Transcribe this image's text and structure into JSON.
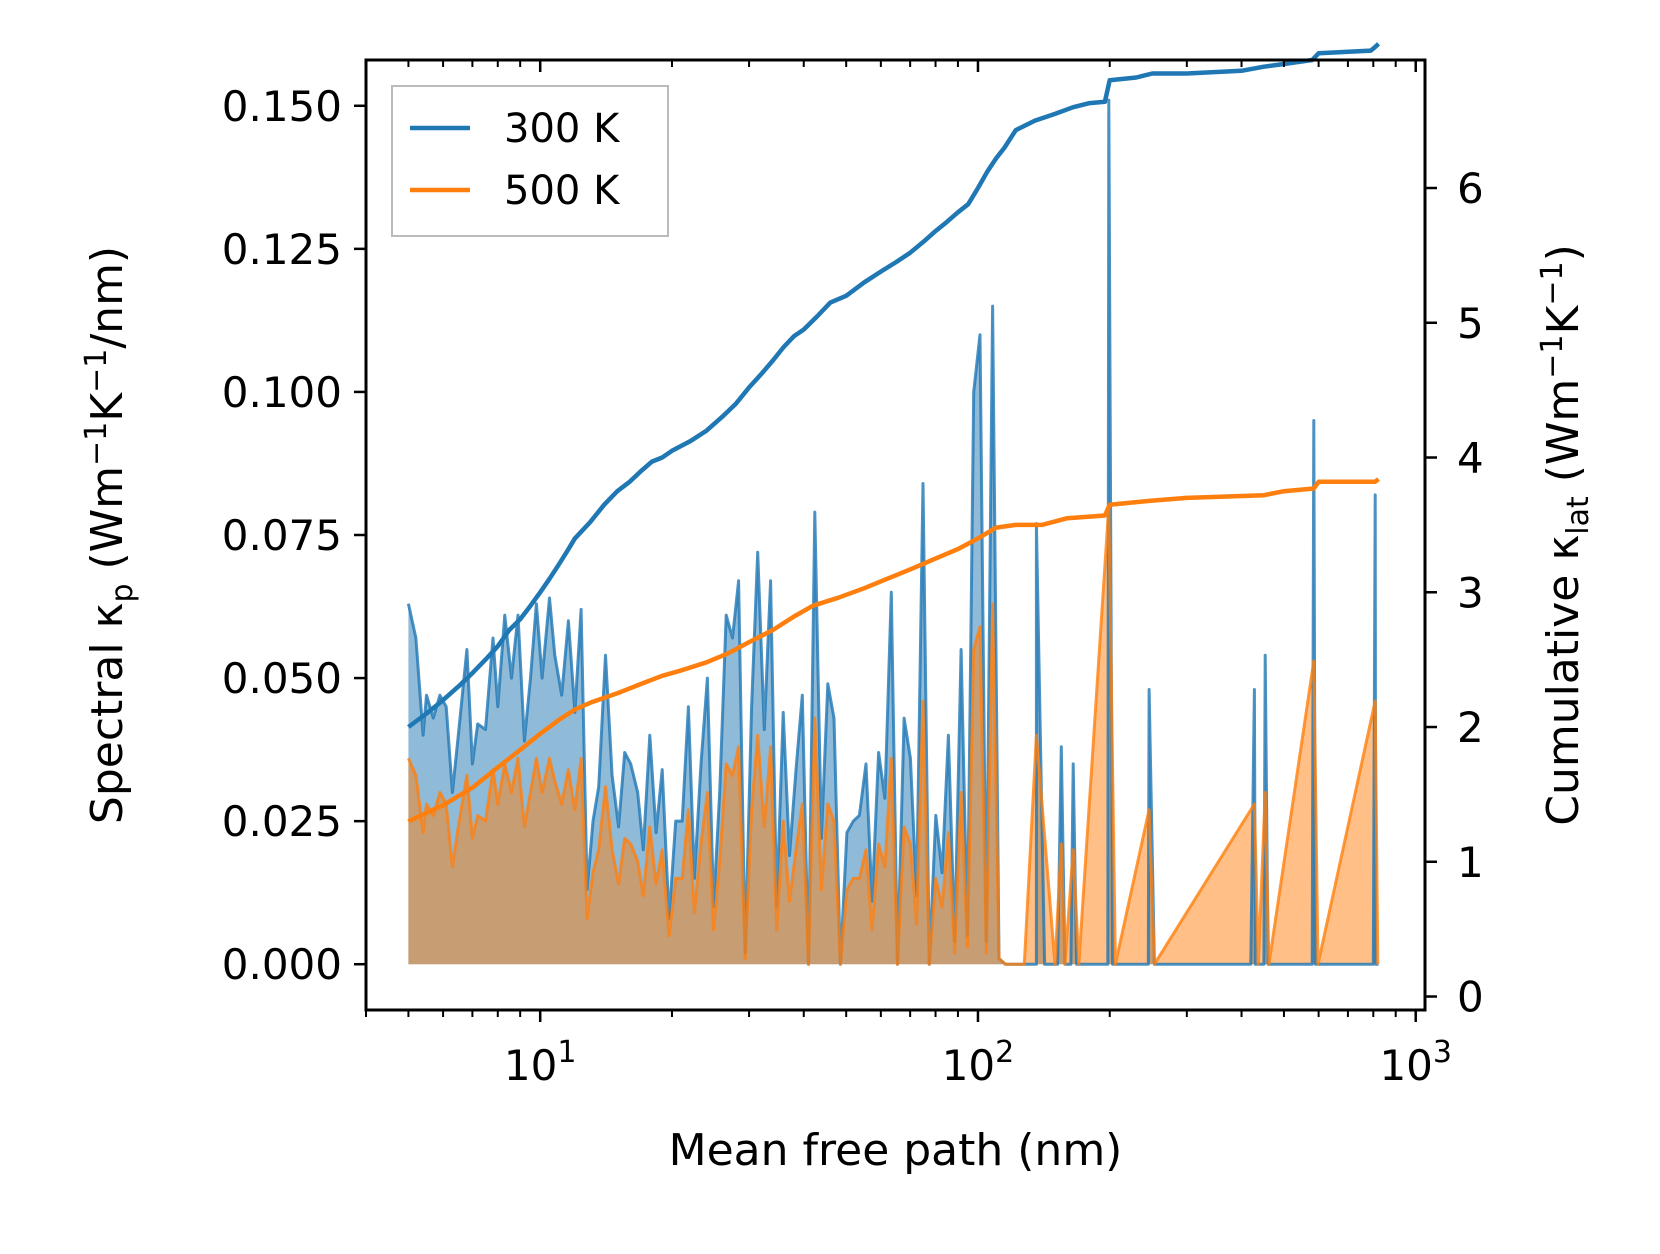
{
  "chart_data": {
    "type": "line",
    "xscale": "log",
    "xlabel": "Mean free path (nm)",
    "ylabel_left_parts": [
      "Spectral κ",
      "p",
      " (Wm",
      "−1",
      "K",
      "−1",
      "/nm)"
    ],
    "ylabel_right_parts": [
      "Cumulative κ",
      "lat",
      " (Wm",
      "−1",
      "K",
      "−1",
      ")"
    ],
    "xlim": [
      4,
      1050
    ],
    "ylim_left": [
      -0.008,
      0.158
    ],
    "ylim_right": [
      -0.1,
      6.95
    ],
    "x_ticks": [
      {
        "base": "10",
        "exp": "1",
        "value": 10
      },
      {
        "base": "10",
        "exp": "2",
        "value": 100
      },
      {
        "base": "10",
        "exp": "3",
        "value": 1000
      }
    ],
    "y_left_ticks": [
      0.0,
      0.025,
      0.05,
      0.075,
      0.1,
      0.125,
      0.15
    ],
    "y_left_tick_labels": [
      "0.000",
      "0.025",
      "0.050",
      "0.075",
      "0.100",
      "0.125",
      "0.150"
    ],
    "y_right_ticks": [
      0,
      1,
      2,
      3,
      4,
      5,
      6
    ],
    "y_right_tick_labels": [
      "0",
      "1",
      "2",
      "3",
      "4",
      "5",
      "6"
    ],
    "legend_position": "top-left",
    "series": [
      {
        "name": "300 K",
        "color": "#1f77b4",
        "spectral": {
          "x": [
            5.0,
            5.2,
            5.4,
            5.5,
            5.7,
            5.9,
            6.1,
            6.3,
            6.5,
            6.8,
            7.0,
            7.2,
            7.5,
            7.8,
            8.0,
            8.3,
            8.6,
            8.9,
            9.2,
            9.5,
            9.8,
            10.1,
            10.5,
            10.8,
            11.2,
            11.6,
            12.0,
            12.4,
            12.8,
            13.2,
            13.6,
            14.1,
            14.6,
            15.1,
            15.6,
            16.1,
            16.7,
            17.2,
            17.8,
            18.4,
            19.0,
            19.7,
            20.4,
            21.1,
            21.8,
            22.5,
            23.3,
            24.1,
            24.9,
            25.7,
            26.6,
            27.5,
            28.4,
            29.4,
            30.4,
            31.4,
            32.5,
            33.6,
            34.7,
            35.9,
            37.1,
            38.4,
            39.7,
            41.0,
            42.4,
            43.9,
            45.4,
            46.9,
            48.5,
            50.2,
            51.9,
            53.6,
            55.5,
            57.3,
            59.3,
            61.3,
            63.4,
            65.5,
            67.8,
            70.1,
            72.4,
            74.9,
            77.4,
            80.1,
            82.8,
            85.6,
            88.5,
            91.5,
            94.6,
            97.8,
            101.1,
            104.5,
            108.0,
            111.7,
            115.5,
            119.4,
            123.5,
            127.6,
            136.0,
            142.0,
            148.0,
            152.0,
            158.0,
            163.0,
            168.0,
            173.0,
            185.0,
            193.0,
            198.0,
            203.0,
            212.0,
            228.0,
            236.0,
            245.0,
            255.0,
            420.0,
            430.0,
            440.0,
            450.0,
            460.0,
            472.0,
            570.0,
            580.0,
            590.0,
            600.0,
            612.0,
            790.0,
            800.0,
            810.0,
            822.0
          ],
          "y": [
            0.063,
            0.057,
            0.04,
            0.047,
            0.043,
            0.047,
            0.045,
            0.03,
            0.04,
            0.055,
            0.035,
            0.042,
            0.041,
            0.057,
            0.045,
            0.061,
            0.05,
            0.061,
            0.039,
            0.05,
            0.063,
            0.05,
            0.064,
            0.054,
            0.047,
            0.06,
            0.044,
            0.062,
            0.013,
            0.025,
            0.031,
            0.054,
            0.033,
            0.024,
            0.037,
            0.035,
            0.03,
            0.02,
            0.04,
            0.023,
            0.034,
            0.008,
            0.025,
            0.025,
            0.045,
            0.015,
            0.035,
            0.05,
            0.01,
            0.03,
            0.061,
            0.057,
            0.067,
            0.002,
            0.045,
            0.072,
            0.041,
            0.067,
            0.01,
            0.044,
            0.019,
            0.034,
            0.047,
            0.0,
            0.079,
            0.022,
            0.049,
            0.043,
            0.0,
            0.023,
            0.025,
            0.026,
            0.035,
            0.011,
            0.037,
            0.029,
            0.065,
            0.0,
            0.043,
            0.036,
            0.012,
            0.084,
            0.0,
            0.026,
            0.016,
            0.04,
            0.004,
            0.055,
            0.005,
            0.1,
            0.11,
            0.004,
            0.115,
            0.001,
            0.0,
            0.0,
            0.0,
            0.0,
            0.0,
            0.0,
            0.0,
            0.0,
            0.0,
            0.0,
            0.0,
            0.0,
            0.0,
            0.0,
            0.0,
            0.0,
            0.0,
            0.0,
            0.0,
            0.0,
            0.0,
            0.0,
            0.0,
            0.0,
            0.0,
            0.0,
            0.0,
            0.0,
            0.0,
            0.0,
            0.0,
            0.0,
            0.0,
            0.0,
            0.0,
            0.0
          ],
          "x_extra_peaks": [
            [
              120,
              0.0
            ],
            [
              136,
              0.077
            ],
            [
              150,
              0.0
            ],
            [
              155,
              0.038
            ],
            [
              158,
              0.0
            ],
            [
              165,
              0.035
            ],
            [
              170,
              0.0
            ],
            [
              199,
              0.151
            ],
            [
              206,
              0.0
            ],
            [
              246,
              0.048
            ],
            [
              253,
              0.0
            ],
            [
              428,
              0.048
            ],
            [
              437,
              0.0
            ],
            [
              453,
              0.054
            ],
            [
              462,
              0.0
            ],
            [
              585,
              0.095
            ],
            [
              598,
              0.0
            ],
            [
              808,
              0.082
            ],
            [
              819,
              0.0
            ]
          ]
        },
        "cumulative": {
          "x": [
            5.0,
            5.5,
            6.0,
            6.5,
            7.0,
            7.5,
            8.0,
            8.5,
            9.0,
            9.5,
            10.0,
            10.5,
            11.0,
            11.5,
            12.0,
            13.0,
            14.0,
            15.0,
            16.0,
            17.0,
            18.0,
            19.0,
            20.0,
            22.0,
            24.0,
            26.0,
            28.0,
            30.0,
            32.0,
            34.0,
            36.0,
            38.0,
            40.0,
            43.0,
            46.0,
            50.0,
            55.0,
            60.0,
            65.0,
            70.0,
            75.0,
            80.0,
            85.0,
            90.0,
            95.0,
            100.0,
            105.0,
            110.0,
            115.0,
            122.0,
            135.0,
            150.0,
            165.0,
            180.0,
            195.0,
            200.0,
            230.0,
            250.0,
            300.0,
            400.0,
            450.0,
            500.0,
            580.0,
            600.0,
            790.0,
            810.0,
            822.0
          ],
          "y": [
            2.0,
            2.1,
            2.2,
            2.3,
            2.4,
            2.5,
            2.6,
            2.72,
            2.8,
            2.9,
            3.0,
            3.1,
            3.2,
            3.3,
            3.4,
            3.52,
            3.65,
            3.75,
            3.82,
            3.9,
            3.97,
            4.0,
            4.05,
            4.12,
            4.2,
            4.3,
            4.4,
            4.52,
            4.62,
            4.72,
            4.82,
            4.9,
            4.95,
            5.05,
            5.15,
            5.2,
            5.3,
            5.38,
            5.45,
            5.52,
            5.6,
            5.68,
            5.75,
            5.82,
            5.88,
            6.0,
            6.12,
            6.22,
            6.3,
            6.43,
            6.5,
            6.55,
            6.6,
            6.63,
            6.64,
            6.8,
            6.82,
            6.85,
            6.85,
            6.87,
            6.9,
            6.92,
            6.95,
            7.0,
            7.02,
            7.05,
            7.07
          ]
        }
      },
      {
        "name": "500 K",
        "color": "#ff7f0e",
        "spectral": {
          "x": [
            5.0,
            5.2,
            5.4,
            5.5,
            5.7,
            5.9,
            6.1,
            6.3,
            6.5,
            6.8,
            7.0,
            7.2,
            7.5,
            7.8,
            8.0,
            8.3,
            8.6,
            8.9,
            9.2,
            9.5,
            9.8,
            10.1,
            10.5,
            10.8,
            11.2,
            11.6,
            12.0,
            12.4,
            12.8,
            13.2,
            13.6,
            14.1,
            14.6,
            15.1,
            15.6,
            16.1,
            16.7,
            17.2,
            17.8,
            18.4,
            19.0,
            19.7,
            20.4,
            21.1,
            21.8,
            22.5,
            23.3,
            24.1,
            24.9,
            25.7,
            26.6,
            27.5,
            28.4,
            29.4,
            30.4,
            31.4,
            32.5,
            33.6,
            34.7,
            35.9,
            37.1,
            38.4,
            39.7,
            41.0,
            42.4,
            43.9,
            45.4,
            46.9,
            48.5,
            50.2,
            51.9,
            53.6,
            55.5,
            57.3,
            59.3,
            61.3,
            63.4,
            65.5,
            67.8,
            70.1,
            72.4,
            74.9,
            77.4,
            80.1,
            82.8,
            85.6,
            88.5,
            91.5,
            94.6,
            97.8,
            101.1,
            104.5,
            108.0,
            111.7,
            115.5,
            119.4,
            123.5,
            127.6
          ],
          "y": [
            0.036,
            0.033,
            0.023,
            0.028,
            0.026,
            0.03,
            0.028,
            0.017,
            0.024,
            0.033,
            0.022,
            0.026,
            0.025,
            0.034,
            0.028,
            0.035,
            0.03,
            0.036,
            0.024,
            0.03,
            0.036,
            0.03,
            0.036,
            0.032,
            0.028,
            0.034,
            0.027,
            0.036,
            0.008,
            0.016,
            0.02,
            0.031,
            0.02,
            0.014,
            0.022,
            0.021,
            0.018,
            0.012,
            0.024,
            0.014,
            0.02,
            0.005,
            0.015,
            0.015,
            0.027,
            0.009,
            0.021,
            0.03,
            0.006,
            0.018,
            0.035,
            0.033,
            0.038,
            0.001,
            0.027,
            0.04,
            0.024,
            0.038,
            0.006,
            0.025,
            0.011,
            0.02,
            0.028,
            0.0,
            0.043,
            0.013,
            0.028,
            0.025,
            0.0,
            0.013,
            0.015,
            0.015,
            0.02,
            0.006,
            0.021,
            0.017,
            0.036,
            0.0,
            0.024,
            0.021,
            0.007,
            0.046,
            0.0,
            0.015,
            0.01,
            0.023,
            0.002,
            0.03,
            0.003,
            0.055,
            0.059,
            0.002,
            0.063,
            0.001,
            0.0,
            0.0,
            0.0,
            0.0
          ],
          "x_extra_peaks": [
            [
              136,
              0.04
            ],
            [
              150,
              0.0
            ],
            [
              155,
              0.021
            ],
            [
              158,
              0.0
            ],
            [
              165,
              0.02
            ],
            [
              170,
              0.0
            ],
            [
              199,
              0.08
            ],
            [
              206,
              0.0
            ],
            [
              246,
              0.027
            ],
            [
              253,
              0.0
            ],
            [
              428,
              0.028
            ],
            [
              437,
              0.0
            ],
            [
              453,
              0.03
            ],
            [
              462,
              0.0
            ],
            [
              585,
              0.053
            ],
            [
              598,
              0.0
            ],
            [
              808,
              0.046
            ],
            [
              819,
              0.0
            ]
          ]
        },
        "cumulative": {
          "x": [
            5.0,
            6.0,
            7.0,
            8.0,
            9.0,
            10.0,
            11.0,
            12.0,
            13.0,
            15.0,
            17.0,
            19.0,
            21.0,
            24.0,
            27.0,
            30.0,
            34.0,
            38.0,
            42.0,
            48.0,
            55.0,
            62.0,
            70.0,
            80.0,
            90.0,
            100.0,
            110.0,
            122.0,
            140.0,
            160.0,
            195.0,
            200.0,
            250.0,
            300.0,
            450.0,
            500.0,
            585.0,
            600.0,
            808.0,
            822.0
          ],
          "y": [
            1.3,
            1.42,
            1.55,
            1.7,
            1.83,
            1.95,
            2.05,
            2.13,
            2.18,
            2.25,
            2.32,
            2.38,
            2.42,
            2.48,
            2.55,
            2.63,
            2.72,
            2.82,
            2.9,
            2.96,
            3.03,
            3.1,
            3.17,
            3.25,
            3.32,
            3.4,
            3.48,
            3.5,
            3.5,
            3.55,
            3.57,
            3.65,
            3.68,
            3.7,
            3.72,
            3.75,
            3.77,
            3.82,
            3.82,
            3.84
          ]
        }
      }
    ]
  }
}
